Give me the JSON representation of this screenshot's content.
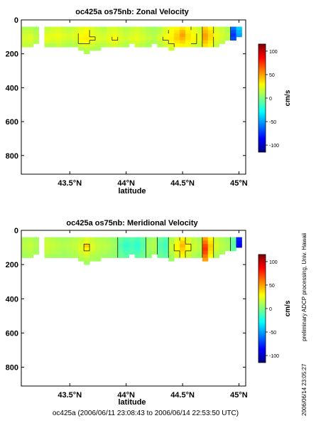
{
  "footer": {
    "caption": "oc425a (2006/06/11 23:08:43 to 2006/06/14 22:53:50 UTC)",
    "side_note": "preliminary ADCP processing,  Univ. Hawaii",
    "timestamp": "2006/06/14 23:05:27"
  },
  "colormap": {
    "stops": [
      "#00007f",
      "#0000ff",
      "#007fff",
      "#00ffff",
      "#7fff7f",
      "#ffff00",
      "#ff7f00",
      "#ff0000",
      "#7f0000"
    ]
  },
  "chart_data": [
    {
      "type": "heatmap",
      "title": "oc425a os75nb: Zonal Velocity",
      "xlabel": "latitude",
      "ylabel": "",
      "x_ticks": [
        43.5,
        44,
        44.5,
        45
      ],
      "x_tick_labels": [
        "43.5°N",
        "44°N",
        "44.5°N",
        "45°N"
      ],
      "xlim": [
        43.07,
        45.06
      ],
      "y_ticks": [
        0,
        200,
        400,
        600,
        800
      ],
      "y_tick_labels": [
        "0",
        "200",
        "400",
        "600",
        "800"
      ],
      "ylim": [
        910,
        0
      ],
      "colorbar": {
        "label": "cm/s",
        "range": [
          -115,
          115
        ],
        "ticks": [
          -100,
          -50,
          0,
          50,
          100
        ],
        "tick_labels": [
          "-100",
          "-50",
          "0",
          "50",
          "100"
        ]
      },
      "depth_bins": [
        50,
        70,
        90,
        110,
        130,
        150,
        170,
        190
      ],
      "profiles": [
        {
          "lat": 43.1,
          "values": [
            10,
            15,
            18,
            20,
            18,
            15,
            null,
            null
          ]
        },
        {
          "lat": 43.15,
          "values": [
            12,
            16,
            20,
            22,
            18,
            14,
            null,
            null
          ]
        },
        {
          "lat": 43.2,
          "values": [
            8,
            12,
            14,
            15,
            12,
            null,
            null,
            null
          ]
        },
        {
          "lat": 43.3,
          "values": [
            15,
            18,
            22,
            25,
            20,
            12,
            null,
            null
          ]
        },
        {
          "lat": 43.35,
          "values": [
            18,
            20,
            24,
            22,
            18,
            10,
            null,
            null
          ]
        },
        {
          "lat": 43.4,
          "values": [
            20,
            22,
            25,
            24,
            20,
            15,
            null,
            null
          ]
        },
        {
          "lat": 43.45,
          "values": [
            16,
            18,
            22,
            20,
            16,
            12,
            null,
            null
          ]
        },
        {
          "lat": 43.5,
          "values": [
            14,
            16,
            20,
            18,
            14,
            10,
            null,
            null
          ]
        },
        {
          "lat": 43.55,
          "values": [
            18,
            20,
            22,
            20,
            16,
            12,
            null,
            null
          ]
        },
        {
          "lat": 43.6,
          "values": [
            22,
            25,
            28,
            30,
            26,
            20,
            12,
            null
          ]
        },
        {
          "lat": 43.65,
          "values": [
            25,
            28,
            30,
            32,
            28,
            22,
            15,
            10
          ]
        },
        {
          "lat": 43.7,
          "values": [
            20,
            22,
            24,
            26,
            22,
            18,
            12,
            null
          ]
        },
        {
          "lat": 43.75,
          "values": [
            15,
            18,
            20,
            22,
            18,
            14,
            10,
            null
          ]
        },
        {
          "lat": 43.8,
          "values": [
            12,
            15,
            18,
            20,
            16,
            12,
            null,
            null
          ]
        },
        {
          "lat": 43.85,
          "values": [
            18,
            20,
            22,
            24,
            20,
            16,
            null,
            null
          ]
        },
        {
          "lat": 43.9,
          "values": [
            20,
            22,
            25,
            28,
            24,
            18,
            null,
            null
          ]
        },
        {
          "lat": 43.95,
          "values": [
            16,
            18,
            20,
            22,
            18,
            14,
            null,
            null
          ]
        },
        {
          "lat": 44.0,
          "values": [
            12,
            14,
            16,
            18,
            14,
            10,
            null,
            null
          ]
        },
        {
          "lat": 44.05,
          "values": [
            15,
            18,
            20,
            22,
            18,
            null,
            null,
            null
          ]
        },
        {
          "lat": 44.1,
          "values": [
            18,
            20,
            22,
            24,
            20,
            16,
            null,
            null
          ]
        },
        {
          "lat": 44.15,
          "values": [
            14,
            16,
            18,
            20,
            16,
            12,
            null,
            null
          ]
        },
        {
          "lat": 44.2,
          "values": [
            10,
            12,
            14,
            16,
            12,
            8,
            null,
            null
          ]
        },
        {
          "lat": 44.25,
          "values": [
            8,
            10,
            12,
            14,
            10,
            null,
            null,
            null
          ]
        },
        {
          "lat": 44.3,
          "values": [
            12,
            15,
            18,
            20,
            16,
            12,
            null,
            null
          ]
        },
        {
          "lat": 44.35,
          "values": [
            20,
            22,
            25,
            26,
            22,
            18,
            null,
            null
          ]
        },
        {
          "lat": 44.4,
          "values": [
            25,
            28,
            30,
            32,
            28,
            24,
            18,
            null
          ]
        },
        {
          "lat": 44.45,
          "values": [
            30,
            35,
            38,
            40,
            34,
            28,
            null,
            null
          ]
        },
        {
          "lat": 44.5,
          "values": [
            35,
            45,
            50,
            45,
            38,
            30,
            null,
            null
          ]
        },
        {
          "lat": 44.55,
          "values": [
            28,
            32,
            35,
            34,
            30,
            25,
            null,
            null
          ]
        },
        {
          "lat": 44.6,
          "values": [
            22,
            25,
            28,
            30,
            26,
            20,
            null,
            null
          ]
        },
        {
          "lat": 44.65,
          "values": [
            18,
            20,
            22,
            24,
            20,
            16,
            null,
            null
          ]
        },
        {
          "lat": 44.7,
          "values": [
            40,
            45,
            50,
            48,
            42,
            35,
            null,
            null
          ]
        },
        {
          "lat": 44.75,
          "values": [
            30,
            35,
            38,
            36,
            32,
            26,
            null,
            null
          ]
        },
        {
          "lat": 44.8,
          "values": [
            20,
            22,
            25,
            24,
            20,
            15,
            null,
            null
          ]
        },
        {
          "lat": 44.85,
          "values": [
            15,
            18,
            20,
            18,
            14,
            null,
            null,
            null
          ]
        },
        {
          "lat": 44.9,
          "values": [
            10,
            12,
            14,
            12,
            null,
            null,
            null,
            null
          ]
        },
        {
          "lat": 44.95,
          "values": [
            -60,
            -70,
            -75,
            -70,
            null,
            null,
            null,
            null
          ]
        },
        {
          "lat": 45.0,
          "values": [
            -40,
            -45,
            -50,
            null,
            null,
            null,
            null,
            null
          ]
        }
      ]
    },
    {
      "type": "heatmap",
      "title": "oc425a os75nb: Meridional Velocity",
      "xlabel": "latitude",
      "ylabel": "",
      "x_ticks": [
        43.5,
        44,
        44.5,
        45
      ],
      "x_tick_labels": [
        "43.5°N",
        "44°N",
        "44.5°N",
        "45°N"
      ],
      "xlim": [
        43.07,
        45.06
      ],
      "y_ticks": [
        0,
        200,
        400,
        600,
        800
      ],
      "y_tick_labels": [
        "0",
        "200",
        "400",
        "600",
        "800"
      ],
      "ylim": [
        910,
        0
      ],
      "colorbar": {
        "label": "cm/s",
        "range": [
          -115,
          115
        ],
        "ticks": [
          -100,
          -50,
          0,
          50,
          100
        ],
        "tick_labels": [
          "-100",
          "-50",
          "0",
          "50",
          "100"
        ]
      },
      "depth_bins": [
        50,
        70,
        90,
        110,
        130,
        150,
        170,
        190
      ],
      "profiles": [
        {
          "lat": 43.1,
          "values": [
            10,
            12,
            14,
            12,
            10,
            8,
            null,
            null
          ]
        },
        {
          "lat": 43.15,
          "values": [
            12,
            14,
            16,
            14,
            12,
            10,
            null,
            null
          ]
        },
        {
          "lat": 43.2,
          "values": [
            8,
            10,
            12,
            10,
            8,
            null,
            null,
            null
          ]
        },
        {
          "lat": 43.3,
          "values": [
            14,
            16,
            18,
            16,
            14,
            10,
            null,
            null
          ]
        },
        {
          "lat": 43.35,
          "values": [
            12,
            14,
            16,
            14,
            12,
            8,
            null,
            null
          ]
        },
        {
          "lat": 43.4,
          "values": [
            10,
            12,
            14,
            12,
            10,
            8,
            null,
            null
          ]
        },
        {
          "lat": 43.45,
          "values": [
            8,
            10,
            12,
            10,
            8,
            6,
            null,
            null
          ]
        },
        {
          "lat": 43.5,
          "values": [
            10,
            12,
            14,
            12,
            10,
            8,
            null,
            null
          ]
        },
        {
          "lat": 43.55,
          "values": [
            12,
            14,
            16,
            14,
            12,
            10,
            null,
            null
          ]
        },
        {
          "lat": 43.6,
          "values": [
            15,
            18,
            20,
            22,
            18,
            14,
            10,
            null
          ]
        },
        {
          "lat": 43.65,
          "values": [
            20,
            24,
            40,
            30,
            24,
            18,
            12,
            8
          ]
        },
        {
          "lat": 43.7,
          "values": [
            16,
            18,
            22,
            20,
            16,
            12,
            10,
            null
          ]
        },
        {
          "lat": 43.75,
          "values": [
            12,
            14,
            16,
            14,
            12,
            10,
            8,
            null
          ]
        },
        {
          "lat": 43.8,
          "values": [
            10,
            12,
            14,
            12,
            10,
            8,
            null,
            null
          ]
        },
        {
          "lat": 43.85,
          "values": [
            8,
            10,
            12,
            10,
            8,
            6,
            null,
            null
          ]
        },
        {
          "lat": 43.9,
          "values": [
            5,
            6,
            8,
            6,
            5,
            4,
            null,
            null
          ]
        },
        {
          "lat": 43.95,
          "values": [
            -5,
            -8,
            -10,
            -8,
            -6,
            -4,
            null,
            null
          ]
        },
        {
          "lat": 44.0,
          "values": [
            -10,
            -15,
            -18,
            -15,
            -12,
            -8,
            null,
            null
          ]
        },
        {
          "lat": 44.05,
          "values": [
            -8,
            -12,
            -14,
            -12,
            -10,
            null,
            null,
            null
          ]
        },
        {
          "lat": 44.1,
          "values": [
            -12,
            -16,
            -18,
            -16,
            -12,
            -8,
            null,
            null
          ]
        },
        {
          "lat": 44.15,
          "values": [
            -6,
            -8,
            -10,
            -8,
            -6,
            -4,
            null,
            null
          ]
        },
        {
          "lat": 44.2,
          "values": [
            5,
            8,
            10,
            8,
            6,
            4,
            null,
            null
          ]
        },
        {
          "lat": 44.25,
          "values": [
            8,
            10,
            12,
            10,
            8,
            null,
            null,
            null
          ]
        },
        {
          "lat": 44.3,
          "values": [
            -5,
            -8,
            -10,
            -8,
            -6,
            -4,
            null,
            null
          ]
        },
        {
          "lat": 44.35,
          "values": [
            -10,
            -12,
            -15,
            -12,
            -10,
            -8,
            null,
            null
          ]
        },
        {
          "lat": 44.4,
          "values": [
            10,
            14,
            18,
            16,
            12,
            8,
            6,
            null
          ]
        },
        {
          "lat": 44.45,
          "values": [
            20,
            25,
            30,
            28,
            24,
            18,
            null,
            null
          ]
        },
        {
          "lat": 44.5,
          "values": [
            30,
            40,
            45,
            40,
            34,
            26,
            null,
            null
          ]
        },
        {
          "lat": 44.55,
          "values": [
            20,
            24,
            28,
            26,
            22,
            18,
            null,
            null
          ]
        },
        {
          "lat": 44.6,
          "values": [
            14,
            16,
            18,
            16,
            14,
            10,
            null,
            null
          ]
        },
        {
          "lat": 44.65,
          "values": [
            10,
            12,
            14,
            12,
            10,
            8,
            null,
            null
          ]
        },
        {
          "lat": 44.7,
          "values": [
            50,
            60,
            70,
            75,
            70,
            60,
            50,
            null
          ]
        },
        {
          "lat": 44.75,
          "values": [
            30,
            35,
            40,
            38,
            34,
            28,
            null,
            null
          ]
        },
        {
          "lat": 44.8,
          "values": [
            16,
            18,
            20,
            18,
            14,
            10,
            null,
            null
          ]
        },
        {
          "lat": 44.85,
          "values": [
            10,
            12,
            14,
            12,
            10,
            null,
            null,
            null
          ]
        },
        {
          "lat": 44.9,
          "values": [
            6,
            8,
            10,
            8,
            null,
            null,
            null,
            null
          ]
        },
        {
          "lat": 44.95,
          "values": [
            -5,
            -6,
            -8,
            -6,
            null,
            null,
            null,
            null
          ]
        },
        {
          "lat": 45.0,
          "values": [
            -80,
            -85,
            -90,
            null,
            null,
            null,
            null,
            null
          ]
        }
      ]
    }
  ]
}
